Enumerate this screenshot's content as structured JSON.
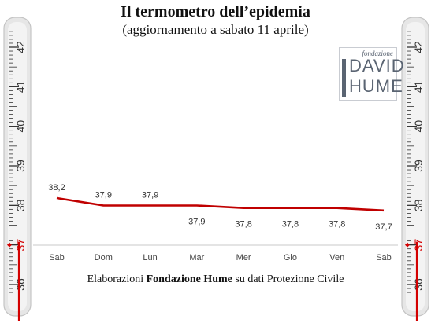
{
  "header": {
    "title": "Il termometro dell’epidemia",
    "subtitle": "(aggiornamento a sabato 11 aprile)"
  },
  "logo": {
    "small": "fondazione",
    "word1": "DAVID",
    "word2": "HUME"
  },
  "footer": {
    "prefix": "Elaborazioni ",
    "bold": "Fondazione Hume",
    "suffix": " su dati Protezione Civile"
  },
  "thermometer": {
    "scale_labels": [
      "36",
      "37",
      "38",
      "39",
      "40",
      "41",
      "42"
    ],
    "reading": 37
  },
  "chart_data": {
    "type": "line",
    "title": "Il termometro dell’epidemia",
    "subtitle": "(aggiornamento a sabato 11 aprile)",
    "categories": [
      "Sab",
      "Dom",
      "Lun",
      "Mar",
      "Mer",
      "Gio",
      "Ven",
      "Sab"
    ],
    "values": [
      38.2,
      37.9,
      37.9,
      37.9,
      37.8,
      37.8,
      37.8,
      37.7
    ],
    "data_labels": [
      "38,2",
      "37,9",
      "37,9",
      "37,9",
      "37,8",
      "37,8",
      "37,8",
      "37,7"
    ],
    "ylim": [
      36,
      42.5
    ],
    "grid": false,
    "series_color": "#c00000"
  },
  "colors": {
    "line": "#c00000",
    "thermo_red": "#d40000",
    "thermo_body": "#e6e6e6",
    "axis": "#c8c8c8"
  }
}
